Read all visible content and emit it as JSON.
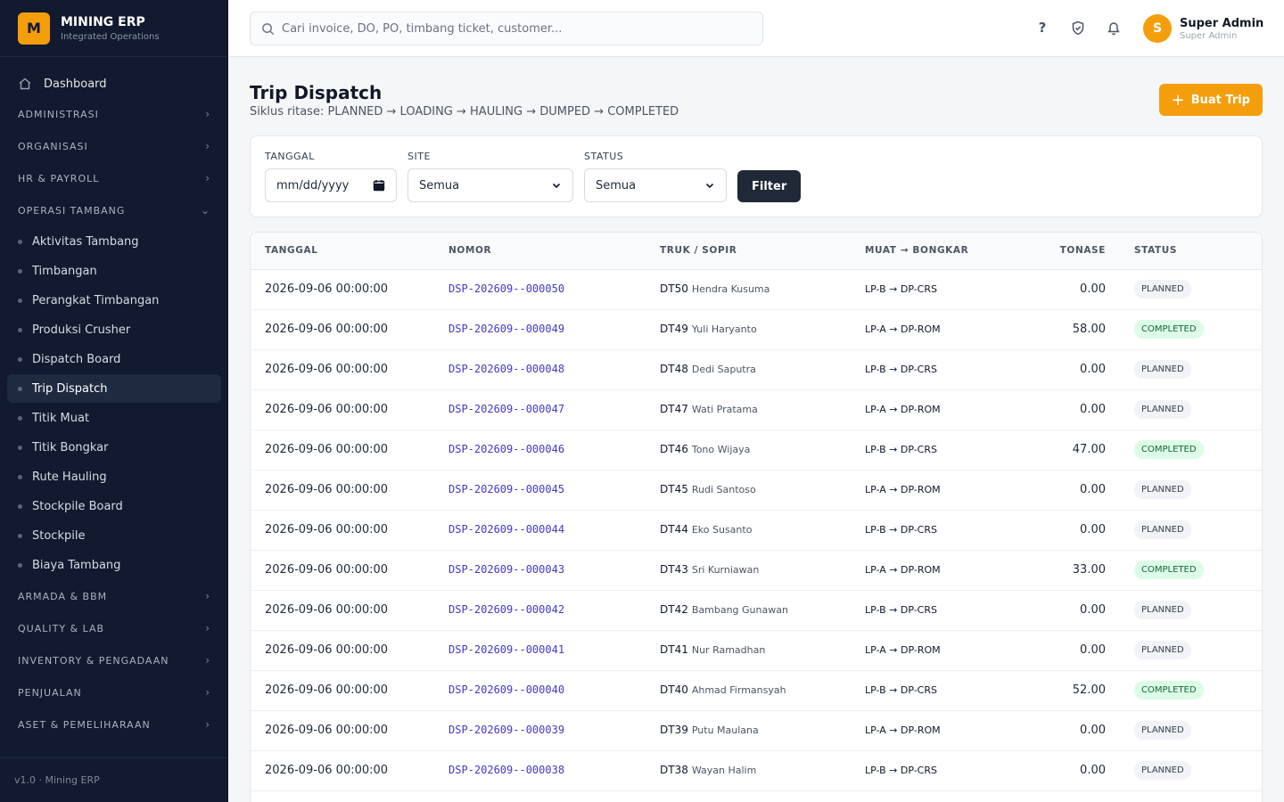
{
  "brand": {
    "logo_letter": "M",
    "name": "MINING ERP",
    "subtitle": "Integrated Operations"
  },
  "sidebar": {
    "dashboard": "Dashboard",
    "groups_top": [
      "ADMINISTRASI",
      "ORGANISASI",
      "HR & PAYROLL"
    ],
    "open_group": "OPERASI TAMBANG",
    "sub_items": [
      "Aktivitas Tambang",
      "Timbangan",
      "Perangkat Timbangan",
      "Produksi Crusher",
      "Dispatch Board",
      "Trip Dispatch",
      "Titik Muat",
      "Titik Bongkar",
      "Rute Hauling",
      "Stockpile Board",
      "Stockpile",
      "Biaya Tambang"
    ],
    "active_sub": "Trip Dispatch",
    "groups_bottom": [
      "ARMADA & BBM",
      "QUALITY & LAB",
      "INVENTORY & PENGADAAN",
      "PENJUALAN",
      "ASET & PEMELIHARAAN"
    ],
    "footer": "v1.0 · Mining ERP"
  },
  "topbar": {
    "search_placeholder": "Cari invoice, DO, PO, timbang ticket, customer...",
    "help_icon": "?",
    "user": {
      "initial": "S",
      "name": "Super Admin",
      "role": "Super Admin"
    }
  },
  "page": {
    "title": "Trip Dispatch",
    "subtitle": "Siklus ritase: PLANNED → LOADING → HAULING → DUMPED → COMPLETED",
    "create_button": "Buat Trip"
  },
  "filters": {
    "date_label": "TANGGAL",
    "date_value": "mm/dd/yyyy",
    "site_label": "SITE",
    "site_value": "Semua",
    "status_label": "STATUS",
    "status_value": "Semua",
    "filter_button": "Filter"
  },
  "table": {
    "headers": [
      "TANGGAL",
      "NOMOR",
      "TRUK / SOPIR",
      "MUAT → BONGKAR",
      "TONASE",
      "STATUS"
    ],
    "rows": [
      {
        "date": "2026-09-06 00:00:00",
        "no": "DSP-202609--000050",
        "truck": "DT50",
        "driver": "Hendra Kusuma",
        "route": "LP-B → DP-CRS",
        "ton": "0.00",
        "status": "PLANNED"
      },
      {
        "date": "2026-09-06 00:00:00",
        "no": "DSP-202609--000049",
        "truck": "DT49",
        "driver": "Yuli Haryanto",
        "route": "LP-A → DP-ROM",
        "ton": "58.00",
        "status": "COMPLETED"
      },
      {
        "date": "2026-09-06 00:00:00",
        "no": "DSP-202609--000048",
        "truck": "DT48",
        "driver": "Dedi Saputra",
        "route": "LP-B → DP-CRS",
        "ton": "0.00",
        "status": "PLANNED"
      },
      {
        "date": "2026-09-06 00:00:00",
        "no": "DSP-202609--000047",
        "truck": "DT47",
        "driver": "Wati Pratama",
        "route": "LP-A → DP-ROM",
        "ton": "0.00",
        "status": "PLANNED"
      },
      {
        "date": "2026-09-06 00:00:00",
        "no": "DSP-202609--000046",
        "truck": "DT46",
        "driver": "Tono Wijaya",
        "route": "LP-B → DP-CRS",
        "ton": "47.00",
        "status": "COMPLETED"
      },
      {
        "date": "2026-09-06 00:00:00",
        "no": "DSP-202609--000045",
        "truck": "DT45",
        "driver": "Rudi Santoso",
        "route": "LP-A → DP-ROM",
        "ton": "0.00",
        "status": "PLANNED"
      },
      {
        "date": "2026-09-06 00:00:00",
        "no": "DSP-202609--000044",
        "truck": "DT44",
        "driver": "Eko Susanto",
        "route": "LP-B → DP-CRS",
        "ton": "0.00",
        "status": "PLANNED"
      },
      {
        "date": "2026-09-06 00:00:00",
        "no": "DSP-202609--000043",
        "truck": "DT43",
        "driver": "Sri Kurniawan",
        "route": "LP-A → DP-ROM",
        "ton": "33.00",
        "status": "COMPLETED"
      },
      {
        "date": "2026-09-06 00:00:00",
        "no": "DSP-202609--000042",
        "truck": "DT42",
        "driver": "Bambang Gunawan",
        "route": "LP-B → DP-CRS",
        "ton": "0.00",
        "status": "PLANNED"
      },
      {
        "date": "2026-09-06 00:00:00",
        "no": "DSP-202609--000041",
        "truck": "DT41",
        "driver": "Nur Ramadhan",
        "route": "LP-A → DP-ROM",
        "ton": "0.00",
        "status": "PLANNED"
      },
      {
        "date": "2026-09-06 00:00:00",
        "no": "DSP-202609--000040",
        "truck": "DT40",
        "driver": "Ahmad Firmansyah",
        "route": "LP-B → DP-CRS",
        "ton": "52.00",
        "status": "COMPLETED"
      },
      {
        "date": "2026-09-06 00:00:00",
        "no": "DSP-202609--000039",
        "truck": "DT39",
        "driver": "Putu Maulana",
        "route": "LP-A → DP-ROM",
        "ton": "0.00",
        "status": "PLANNED"
      },
      {
        "date": "2026-09-06 00:00:00",
        "no": "DSP-202609--000038",
        "truck": "DT38",
        "driver": "Wayan Halim",
        "route": "LP-B → DP-CRS",
        "ton": "0.00",
        "status": "PLANNED"
      }
    ]
  },
  "colors": {
    "sidebar_bg": "#111a2e",
    "accent": "#f59e0b",
    "link": "#4338ca"
  }
}
